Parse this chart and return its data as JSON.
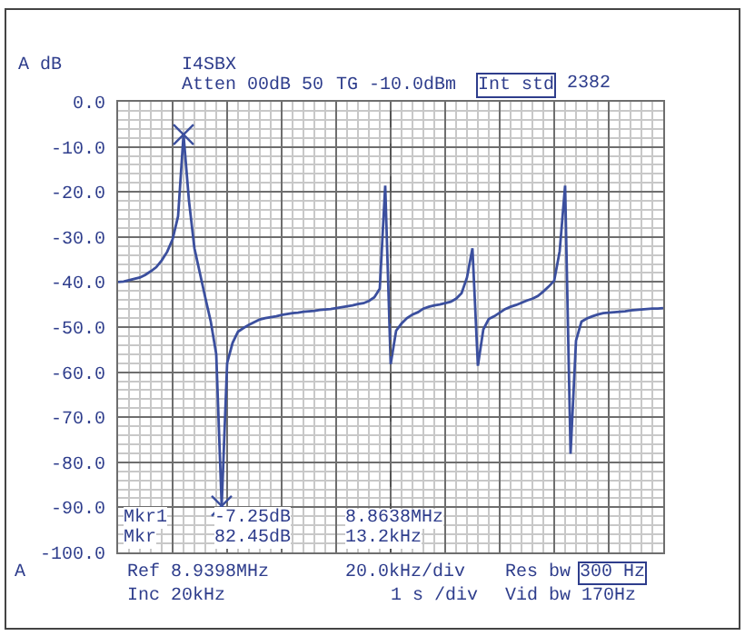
{
  "chart_data": {
    "type": "line",
    "ylabel": "A dB",
    "categories": [
      null,
      null,
      null,
      null,
      null,
      null,
      null,
      null,
      null,
      null,
      null,
      null,
      null,
      null,
      null,
      null,
      null,
      null,
      null,
      null,
      null,
      null,
      null,
      null,
      null,
      null,
      null,
      null,
      null,
      null,
      null,
      null,
      null,
      null,
      null,
      null,
      null,
      null,
      null,
      null,
      null,
      null,
      null,
      null,
      null,
      null,
      null,
      null,
      null,
      null,
      null,
      null,
      null,
      null,
      null,
      null,
      null,
      null,
      null,
      null,
      null,
      null,
      null,
      null,
      null,
      null,
      null,
      null,
      null,
      null,
      null,
      null,
      null,
      null,
      null,
      null,
      null,
      null,
      null,
      null,
      null,
      null,
      null,
      null,
      null,
      null,
      null,
      null,
      null,
      null,
      null,
      null,
      null,
      null,
      null,
      null,
      null,
      null,
      null,
      null,
      null
    ],
    "series": [
      {
        "color": "#3b4f9e",
        "values": [
          -40.0,
          -39.9,
          -39.6,
          -39.3,
          -39.0,
          -38.4,
          -37.6,
          -36.7,
          -35.2,
          -33.3,
          -30.5,
          -25.4,
          -7.3,
          -22,
          -32.5,
          -38,
          -43.5,
          -48.8,
          -56,
          -89.7,
          -58,
          -53.5,
          -51,
          -50.2,
          -49.5,
          -48.9,
          -48.3,
          -48.0,
          -47.8,
          -47.6,
          -47.3,
          -47.1,
          -46.9,
          -46.8,
          -46.6,
          -46.5,
          -46.4,
          -46.2,
          -46.1,
          -46.0,
          -45.8,
          -45.6,
          -45.4,
          -45.2,
          -44.9,
          -44.7,
          -44.2,
          -43.4,
          -41.5,
          -18.6,
          -58.2,
          -50.8,
          -49.2,
          -48.0,
          -47.2,
          -46.7,
          -45.9,
          -45.5,
          -45.2,
          -45.0,
          -44.7,
          -44.4,
          -43.7,
          -42.5,
          -39,
          -32.5,
          -58.6,
          -50.5,
          -48.2,
          -47.6,
          -46.8,
          -46,
          -45.5,
          -45.1,
          -44.6,
          -44.1,
          -43.7,
          -43.1,
          -42.1,
          -41,
          -39.7,
          -33.2,
          -18.6,
          -78.1,
          -53,
          -48.8,
          -48.1,
          -47.6,
          -47.2,
          -46.9,
          -46.8,
          -46.7,
          -46.6,
          -46.5,
          -46.3,
          -46.2,
          -46.1,
          -46.0,
          -45.9,
          -45.9,
          -45.8
        ]
      },
      {
        "type": "scatter",
        "color": "#3b4f9e",
        "marker": "cross",
        "values": [
          null,
          null,
          null,
          null,
          null,
          null,
          null,
          null,
          null,
          null,
          null,
          null,
          -7.3,
          null,
          null,
          null,
          null,
          null,
          null,
          -89.7,
          null,
          null,
          null,
          null,
          null,
          null,
          null,
          null,
          null,
          null,
          null,
          null,
          null,
          null,
          null,
          null,
          null,
          null,
          null,
          null,
          null,
          null,
          null,
          null,
          null,
          null,
          null,
          null,
          null,
          null,
          null,
          null,
          null,
          null,
          null,
          null,
          null,
          null,
          null,
          null,
          null,
          null,
          null,
          null,
          null,
          null,
          null,
          null,
          null,
          null,
          null,
          null,
          null,
          null,
          null,
          null,
          null,
          null,
          null,
          null,
          null,
          null,
          null,
          null,
          null,
          null,
          null,
          null,
          null,
          null,
          null,
          null,
          null,
          null,
          null,
          null,
          null,
          null,
          null,
          null,
          null
        ]
      }
    ],
    "ylim": [
      -100,
      0
    ],
    "yticks": [
      {
        "value": 0,
        "label": "0.0"
      },
      {
        "value": -10,
        "label": "-10.0"
      },
      {
        "value": -20,
        "label": "-20.0"
      },
      {
        "value": -30,
        "label": "-30.0"
      },
      {
        "value": -40,
        "label": "-40.0"
      },
      {
        "value": -50,
        "label": "-50.0"
      },
      {
        "value": -60,
        "label": "-60.0"
      },
      {
        "value": -70,
        "label": "-70.0"
      },
      {
        "value": -80,
        "label": "-80.0"
      },
      {
        "value": -90,
        "label": "-90.0"
      },
      {
        "value": -100,
        "label": "-100.0"
      }
    ],
    "tick_labels": "y",
    "grid": true,
    "line_style": "solid",
    "annotations": [
      "I4SBX",
      "Atten 00dB 50",
      "TG -10.0dBm",
      "Int std",
      "2382",
      "Mkr1",
      "-7.25dB",
      "8.8638MHz",
      "Mkr",
      "82.45dB",
      "13.2kHz",
      "A",
      "Ref 8.9398MHz",
      "20.0kHz/div",
      "Res bw",
      "300 Hz",
      "Inc 20kHz",
      "1 s /div",
      "Vid bw 170Hz"
    ]
  }
}
